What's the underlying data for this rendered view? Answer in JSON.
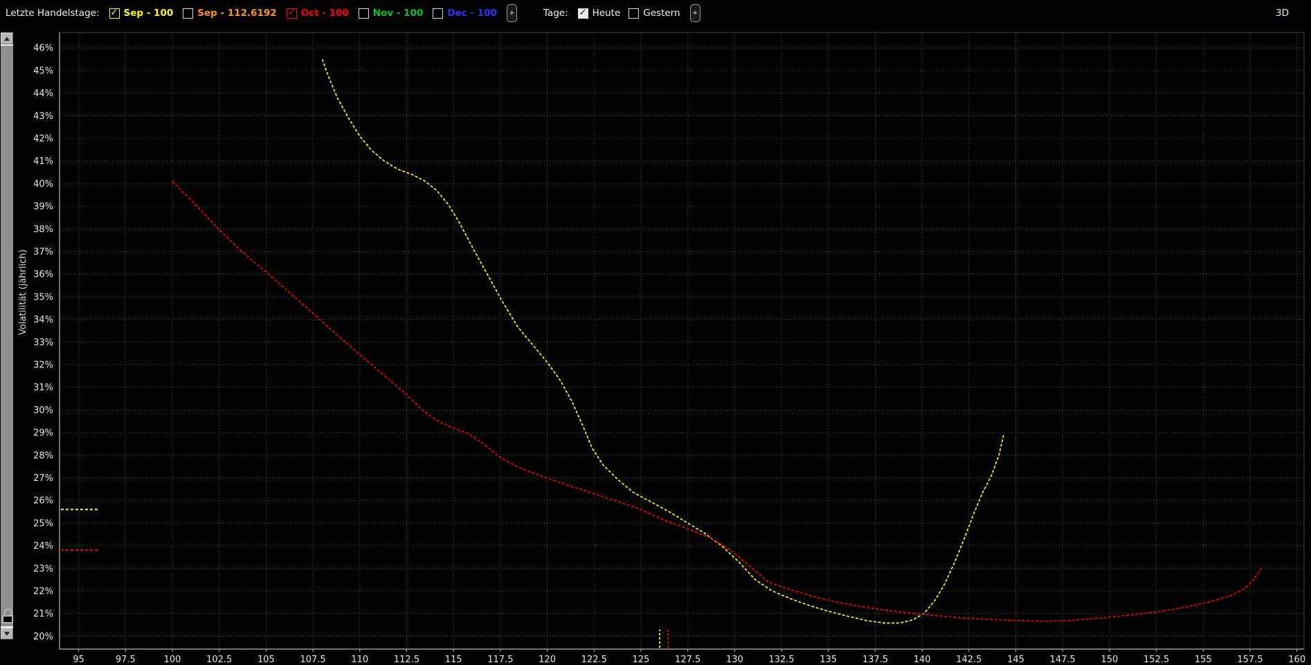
{
  "toolbar": {
    "label": "Letzte Handelstage:",
    "series_toggles": [
      {
        "label": "Sep - 100",
        "color": "#ffff00",
        "checked": true
      },
      {
        "label": "Sep - 112.6192",
        "color": "#ff9900",
        "checked": false
      },
      {
        "label": "Oct - 100",
        "color": "#ff0000",
        "checked": true
      },
      {
        "label": "Nov - 100",
        "color": "#00c832",
        "checked": false
      },
      {
        "label": "Dec - 100",
        "color": "#3232ff",
        "checked": false
      }
    ],
    "plus_label": "+",
    "days_label": "Tage:",
    "day_toggles": [
      {
        "label": "Heute",
        "checked": true
      },
      {
        "label": "Gestern",
        "checked": false
      }
    ],
    "view_3d_label": "3D"
  },
  "icons": {
    "check": "✓",
    "up_arrow": "up-triangle",
    "down_arrow": "down-triangle",
    "unlock": "open-padlock"
  },
  "chart_data": {
    "type": "line",
    "title": "",
    "xlabel": "",
    "ylabel": "Volatilität (jährlich)",
    "grid": true,
    "xlim": [
      93.98,
      160.38
    ],
    "ylim": [
      19.43,
      46.68
    ],
    "x_tick_labels": [
      "95",
      "97.5",
      "100",
      "102.5",
      "105",
      "107.5",
      "110",
      "112.5",
      "115",
      "117.5",
      "120",
      "122.5",
      "125",
      "127.5",
      "130",
      "132.5",
      "135",
      "137.5",
      "140",
      "142.5",
      "145",
      "147.5",
      "150",
      "152.5",
      "155",
      "157.5",
      "160"
    ],
    "y_tick_labels": [
      "20%",
      "21%",
      "22%",
      "23%",
      "24%",
      "25%",
      "26%",
      "27%",
      "28%",
      "29%",
      "30%",
      "31%",
      "32%",
      "33%",
      "34%",
      "35%",
      "36%",
      "37%",
      "38%",
      "39%",
      "40%",
      "41%",
      "42%",
      "43%",
      "44%",
      "45%",
      "46%"
    ],
    "series": [
      {
        "name": "Sep - 100",
        "color": "#ffff00",
        "style": "dashed",
        "points": [
          [
            108.0,
            45.5
          ],
          [
            108.3,
            44.8
          ],
          [
            108.8,
            43.8
          ],
          [
            109.4,
            42.9
          ],
          [
            110.0,
            42.1
          ],
          [
            110.6,
            41.5
          ],
          [
            111.3,
            41.0
          ],
          [
            112.0,
            40.65
          ],
          [
            112.8,
            40.4
          ],
          [
            113.5,
            40.1
          ],
          [
            114.1,
            39.7
          ],
          [
            114.7,
            39.1
          ],
          [
            115.3,
            38.3
          ],
          [
            116.0,
            37.2
          ],
          [
            116.8,
            36.0
          ],
          [
            117.6,
            34.8
          ],
          [
            118.4,
            33.7
          ],
          [
            119.2,
            32.9
          ],
          [
            120.0,
            32.1
          ],
          [
            120.7,
            31.3
          ],
          [
            121.3,
            30.4
          ],
          [
            121.9,
            29.3
          ],
          [
            122.4,
            28.3
          ],
          [
            123.0,
            27.55
          ],
          [
            123.8,
            26.9
          ],
          [
            124.6,
            26.35
          ],
          [
            125.5,
            25.95
          ],
          [
            126.5,
            25.5
          ],
          [
            127.5,
            25.0
          ],
          [
            128.4,
            24.55
          ],
          [
            129.3,
            24.0
          ],
          [
            130.2,
            23.3
          ],
          [
            131.1,
            22.5
          ],
          [
            132.0,
            22.0
          ],
          [
            133.0,
            21.65
          ],
          [
            134.0,
            21.35
          ],
          [
            135.0,
            21.1
          ],
          [
            136.1,
            20.87
          ],
          [
            137.1,
            20.68
          ],
          [
            138.0,
            20.58
          ],
          [
            138.8,
            20.58
          ],
          [
            139.5,
            20.72
          ],
          [
            140.1,
            21.0
          ],
          [
            140.7,
            21.6
          ],
          [
            141.2,
            22.3
          ],
          [
            141.7,
            23.2
          ],
          [
            142.2,
            24.2
          ],
          [
            142.7,
            25.3
          ],
          [
            143.2,
            26.3
          ],
          [
            143.7,
            27.1
          ],
          [
            144.1,
            28.0
          ],
          [
            144.35,
            28.9
          ]
        ]
      },
      {
        "name": "Oct - 100",
        "color": "#ff0000",
        "style": "dashed",
        "points": [
          [
            100.0,
            40.1
          ],
          [
            101.2,
            39.1
          ],
          [
            102.4,
            38.05
          ],
          [
            103.7,
            37.0
          ],
          [
            105.0,
            36.1
          ],
          [
            106.3,
            35.15
          ],
          [
            107.6,
            34.2
          ],
          [
            108.8,
            33.3
          ],
          [
            110.0,
            32.45
          ],
          [
            111.2,
            31.6
          ],
          [
            112.4,
            30.75
          ],
          [
            113.4,
            29.95
          ],
          [
            114.2,
            29.5
          ],
          [
            115.0,
            29.2
          ],
          [
            115.8,
            28.95
          ],
          [
            116.6,
            28.5
          ],
          [
            117.5,
            27.9
          ],
          [
            118.6,
            27.4
          ],
          [
            119.8,
            27.05
          ],
          [
            121.0,
            26.7
          ],
          [
            122.3,
            26.35
          ],
          [
            123.6,
            26.0
          ],
          [
            125.0,
            25.6
          ],
          [
            126.3,
            25.1
          ],
          [
            127.5,
            24.75
          ],
          [
            128.7,
            24.35
          ],
          [
            129.8,
            23.8
          ],
          [
            130.8,
            23.1
          ],
          [
            131.8,
            22.4
          ],
          [
            132.8,
            22.1
          ],
          [
            134.0,
            21.8
          ],
          [
            135.2,
            21.55
          ],
          [
            136.4,
            21.35
          ],
          [
            137.6,
            21.2
          ],
          [
            139.0,
            21.05
          ],
          [
            140.5,
            20.93
          ],
          [
            142.0,
            20.82
          ],
          [
            143.5,
            20.74
          ],
          [
            145.0,
            20.7
          ],
          [
            146.5,
            20.66
          ],
          [
            148.0,
            20.7
          ],
          [
            149.5,
            20.8
          ],
          [
            151.0,
            20.93
          ],
          [
            152.5,
            21.07
          ],
          [
            154.0,
            21.27
          ],
          [
            155.5,
            21.55
          ],
          [
            156.5,
            21.8
          ],
          [
            157.2,
            22.1
          ],
          [
            157.7,
            22.5
          ],
          [
            158.1,
            23.0
          ]
        ]
      }
    ],
    "markers": {
      "left_level_lines": [
        {
          "series": "Sep - 100",
          "vol_pct": 25.6,
          "color": "#ffff00"
        },
        {
          "series": "Oct - 100",
          "vol_pct": 23.8,
          "color": "#ff0000"
        }
      ],
      "bottom_spot_lines": [
        {
          "series": "Sep - 100",
          "x": 126.0,
          "color": "#ffff00"
        },
        {
          "series": "Oct - 100",
          "x": 126.45,
          "color": "#ff0000"
        }
      ]
    }
  }
}
